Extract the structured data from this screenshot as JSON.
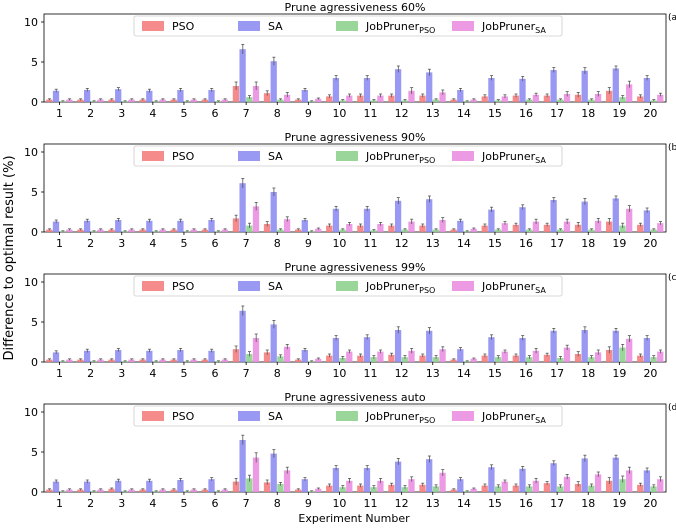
{
  "figure": {
    "ylabel": "Difference to optimal result (%)",
    "xlabel": "Experiment Number"
  },
  "colors": {
    "PSO": "#f4807e",
    "SA": "#8e8ef3",
    "JobPruner_PSO": "#8fd18f",
    "JobPruner_SA": "#ea8fe0",
    "error_bar": "#555555"
  },
  "legend": {
    "placement": "top-center",
    "entries": [
      {
        "key": "PSO",
        "label": "PSO",
        "sub": ""
      },
      {
        "key": "SA",
        "label": "SA",
        "sub": ""
      },
      {
        "key": "JobPruner_PSO",
        "label": "JobPruner",
        "sub": "PSO"
      },
      {
        "key": "JobPruner_SA",
        "label": "JobPruner",
        "sub": "SA"
      }
    ]
  },
  "chart_data": [
    {
      "type": "bar",
      "panel": "(a)",
      "title": "Prune agressiveness 60%",
      "categories": [
        "1",
        "2",
        "3",
        "4",
        "5",
        "6",
        "7",
        "8",
        "9",
        "10",
        "11",
        "12",
        "13",
        "14",
        "15",
        "16",
        "17",
        "18",
        "19",
        "20"
      ],
      "yticks": [
        "0",
        "5",
        "10"
      ],
      "ylim": [
        0,
        11
      ],
      "grid": false,
      "series": [
        {
          "key": "PSO",
          "name": "PSO",
          "values": [
            0.3,
            0.3,
            0.3,
            0.3,
            0.3,
            0.3,
            2.0,
            1.1,
            0.3,
            0.7,
            0.8,
            0.8,
            0.8,
            0.3,
            0.7,
            0.8,
            0.8,
            0.9,
            1.4,
            0.7
          ],
          "errors": [
            0.1,
            0.1,
            0.1,
            0.1,
            0.1,
            0.1,
            0.5,
            0.3,
            0.1,
            0.2,
            0.2,
            0.2,
            0.2,
            0.1,
            0.2,
            0.2,
            0.2,
            0.3,
            0.4,
            0.2
          ]
        },
        {
          "key": "SA",
          "name": "SA",
          "values": [
            1.4,
            1.5,
            1.6,
            1.4,
            1.5,
            1.5,
            6.6,
            5.1,
            1.5,
            3.0,
            3.0,
            4.1,
            3.7,
            1.5,
            3.0,
            2.9,
            4.0,
            3.9,
            4.2,
            3.0
          ],
          "errors": [
            0.2,
            0.2,
            0.2,
            0.2,
            0.2,
            0.2,
            0.6,
            0.5,
            0.2,
            0.3,
            0.3,
            0.4,
            0.4,
            0.2,
            0.3,
            0.3,
            0.3,
            0.4,
            0.3,
            0.3
          ]
        },
        {
          "key": "JobPruner_PSO",
          "name": "JobPruner_PSO",
          "values": [
            0.1,
            0.1,
            0.1,
            0.1,
            0.1,
            0.1,
            0.6,
            0.3,
            0.1,
            0.2,
            0.2,
            0.2,
            0.3,
            0.1,
            0.2,
            0.3,
            0.3,
            0.3,
            0.6,
            0.2
          ],
          "errors": [
            0.05,
            0.05,
            0.05,
            0.05,
            0.05,
            0.05,
            0.2,
            0.1,
            0.05,
            0.1,
            0.1,
            0.1,
            0.1,
            0.05,
            0.1,
            0.1,
            0.1,
            0.1,
            0.2,
            0.1
          ]
        },
        {
          "key": "JobPruner_SA",
          "name": "JobPruner_SA",
          "values": [
            0.3,
            0.3,
            0.3,
            0.3,
            0.3,
            0.3,
            2.0,
            0.9,
            0.4,
            0.8,
            0.8,
            1.4,
            1.2,
            0.3,
            0.7,
            0.9,
            1.0,
            1.0,
            2.2,
            0.9
          ],
          "errors": [
            0.1,
            0.1,
            0.1,
            0.1,
            0.1,
            0.1,
            0.5,
            0.3,
            0.1,
            0.2,
            0.2,
            0.4,
            0.3,
            0.1,
            0.2,
            0.2,
            0.3,
            0.3,
            0.4,
            0.2
          ]
        }
      ]
    },
    {
      "type": "bar",
      "panel": "(b)",
      "title": "Prune agressiveness 90%",
      "categories": [
        "1",
        "2",
        "3",
        "4",
        "5",
        "6",
        "7",
        "8",
        "9",
        "10",
        "11",
        "12",
        "13",
        "14",
        "15",
        "16",
        "17",
        "18",
        "19",
        "20"
      ],
      "yticks": [
        "0",
        "5",
        "10"
      ],
      "ylim": [
        0,
        11
      ],
      "grid": false,
      "series": [
        {
          "key": "PSO",
          "name": "PSO",
          "values": [
            0.3,
            0.3,
            0.3,
            0.3,
            0.3,
            0.3,
            1.7,
            1.0,
            0.3,
            0.8,
            0.8,
            0.8,
            0.8,
            0.3,
            0.8,
            0.9,
            0.9,
            0.9,
            1.3,
            0.9
          ],
          "errors": [
            0.1,
            0.1,
            0.1,
            0.1,
            0.1,
            0.1,
            0.4,
            0.3,
            0.1,
            0.2,
            0.2,
            0.2,
            0.2,
            0.1,
            0.2,
            0.2,
            0.2,
            0.3,
            0.4,
            0.2
          ]
        },
        {
          "key": "SA",
          "name": "SA",
          "values": [
            1.3,
            1.4,
            1.5,
            1.4,
            1.4,
            1.5,
            6.1,
            5.0,
            1.5,
            2.9,
            2.9,
            3.9,
            4.1,
            1.4,
            2.8,
            3.1,
            4.0,
            3.8,
            4.2,
            2.7
          ],
          "errors": [
            0.2,
            0.2,
            0.2,
            0.2,
            0.2,
            0.2,
            0.6,
            0.5,
            0.2,
            0.3,
            0.3,
            0.4,
            0.4,
            0.2,
            0.3,
            0.3,
            0.3,
            0.4,
            0.3,
            0.3
          ]
        },
        {
          "key": "JobPruner_PSO",
          "name": "JobPruner_PSO",
          "values": [
            0.1,
            0.1,
            0.1,
            0.1,
            0.1,
            0.1,
            0.8,
            0.3,
            0.1,
            0.3,
            0.2,
            0.3,
            0.3,
            0.1,
            0.3,
            0.3,
            0.3,
            0.3,
            0.8,
            0.3
          ],
          "errors": [
            0.05,
            0.05,
            0.05,
            0.05,
            0.05,
            0.05,
            0.3,
            0.1,
            0.05,
            0.1,
            0.1,
            0.1,
            0.1,
            0.05,
            0.1,
            0.1,
            0.1,
            0.1,
            0.3,
            0.1
          ]
        },
        {
          "key": "JobPruner_SA",
          "name": "JobPruner_SA",
          "values": [
            0.3,
            0.3,
            0.3,
            0.3,
            0.3,
            0.3,
            3.2,
            1.6,
            0.4,
            1.0,
            1.0,
            1.3,
            1.5,
            0.4,
            1.1,
            1.3,
            1.3,
            1.4,
            2.9,
            1.1
          ],
          "errors": [
            0.1,
            0.1,
            0.1,
            0.1,
            0.1,
            0.1,
            0.5,
            0.3,
            0.1,
            0.2,
            0.2,
            0.3,
            0.3,
            0.1,
            0.2,
            0.3,
            0.3,
            0.3,
            0.4,
            0.2
          ]
        }
      ]
    },
    {
      "type": "bar",
      "panel": "(c)",
      "title": "Prune agressiveness 99%",
      "categories": [
        "1",
        "2",
        "3",
        "4",
        "5",
        "6",
        "7",
        "8",
        "9",
        "10",
        "11",
        "12",
        "13",
        "14",
        "15",
        "16",
        "17",
        "18",
        "19",
        "20"
      ],
      "yticks": [
        "0",
        "5",
        "10"
      ],
      "ylim": [
        0,
        11
      ],
      "grid": false,
      "series": [
        {
          "key": "PSO",
          "name": "PSO",
          "values": [
            0.3,
            0.3,
            0.3,
            0.3,
            0.3,
            0.3,
            1.6,
            1.2,
            0.3,
            0.8,
            0.8,
            0.9,
            0.8,
            0.3,
            0.8,
            0.8,
            0.9,
            1.0,
            1.5,
            0.8
          ],
          "errors": [
            0.1,
            0.1,
            0.1,
            0.1,
            0.1,
            0.1,
            0.4,
            0.3,
            0.1,
            0.2,
            0.2,
            0.2,
            0.2,
            0.1,
            0.2,
            0.2,
            0.2,
            0.3,
            0.4,
            0.2
          ]
        },
        {
          "key": "SA",
          "name": "SA",
          "values": [
            1.2,
            1.4,
            1.5,
            1.4,
            1.5,
            1.4,
            6.4,
            4.7,
            1.5,
            3.0,
            3.1,
            4.0,
            3.9,
            1.6,
            3.1,
            3.0,
            3.9,
            4.0,
            3.9,
            3.0
          ],
          "errors": [
            0.2,
            0.2,
            0.2,
            0.2,
            0.2,
            0.2,
            0.6,
            0.5,
            0.2,
            0.3,
            0.3,
            0.4,
            0.4,
            0.2,
            0.3,
            0.3,
            0.3,
            0.4,
            0.3,
            0.3
          ]
        },
        {
          "key": "JobPruner_PSO",
          "name": "JobPruner_PSO",
          "values": [
            0.1,
            0.1,
            0.1,
            0.1,
            0.1,
            0.1,
            1.0,
            0.7,
            0.1,
            0.5,
            0.6,
            0.6,
            0.6,
            0.1,
            0.6,
            0.6,
            0.5,
            0.6,
            1.8,
            0.6
          ],
          "errors": [
            0.05,
            0.05,
            0.05,
            0.05,
            0.05,
            0.05,
            0.3,
            0.2,
            0.05,
            0.2,
            0.2,
            0.2,
            0.2,
            0.05,
            0.2,
            0.2,
            0.2,
            0.2,
            0.4,
            0.2
          ]
        },
        {
          "key": "JobPruner_SA",
          "name": "JobPruner_SA",
          "values": [
            0.3,
            0.3,
            0.3,
            0.3,
            0.3,
            0.3,
            3.0,
            1.9,
            0.4,
            1.3,
            1.3,
            1.4,
            1.6,
            0.4,
            1.3,
            1.4,
            1.8,
            1.2,
            2.9,
            1.3
          ],
          "errors": [
            0.1,
            0.1,
            0.1,
            0.1,
            0.1,
            0.1,
            0.5,
            0.3,
            0.1,
            0.2,
            0.2,
            0.3,
            0.3,
            0.1,
            0.2,
            0.3,
            0.3,
            0.3,
            0.4,
            0.2
          ]
        }
      ]
    },
    {
      "type": "bar",
      "panel": "(d)",
      "title": "Prune agressiveness auto",
      "categories": [
        "1",
        "2",
        "3",
        "4",
        "5",
        "6",
        "7",
        "8",
        "9",
        "10",
        "11",
        "12",
        "13",
        "14",
        "15",
        "16",
        "17",
        "18",
        "19",
        "20"
      ],
      "yticks": [
        "0",
        "5",
        "10"
      ],
      "ylim": [
        0,
        11
      ],
      "grid": false,
      "series": [
        {
          "key": "PSO",
          "name": "PSO",
          "values": [
            0.3,
            0.3,
            0.4,
            0.3,
            0.3,
            0.3,
            1.3,
            1.2,
            0.3,
            0.8,
            0.8,
            0.9,
            0.9,
            0.3,
            0.8,
            0.8,
            1.1,
            1.0,
            1.4,
            0.9
          ],
          "errors": [
            0.1,
            0.1,
            0.1,
            0.1,
            0.1,
            0.1,
            0.4,
            0.3,
            0.1,
            0.2,
            0.2,
            0.2,
            0.2,
            0.1,
            0.2,
            0.2,
            0.2,
            0.3,
            0.4,
            0.2
          ]
        },
        {
          "key": "SA",
          "name": "SA",
          "values": [
            1.3,
            1.3,
            1.4,
            1.4,
            1.5,
            1.6,
            6.5,
            4.8,
            1.6,
            3.0,
            3.0,
            3.8,
            4.1,
            1.6,
            3.1,
            2.9,
            3.6,
            4.2,
            4.3,
            2.7
          ],
          "errors": [
            0.2,
            0.2,
            0.2,
            0.2,
            0.2,
            0.2,
            0.6,
            0.5,
            0.2,
            0.3,
            0.3,
            0.4,
            0.4,
            0.2,
            0.3,
            0.3,
            0.3,
            0.4,
            0.3,
            0.3
          ]
        },
        {
          "key": "JobPruner_PSO",
          "name": "JobPruner_PSO",
          "values": [
            0.1,
            0.1,
            0.1,
            0.1,
            0.1,
            0.1,
            1.7,
            1.0,
            0.1,
            0.6,
            0.6,
            0.6,
            0.7,
            0.1,
            0.7,
            0.7,
            0.7,
            0.8,
            1.6,
            0.7
          ],
          "errors": [
            0.05,
            0.05,
            0.05,
            0.05,
            0.05,
            0.05,
            0.4,
            0.2,
            0.05,
            0.2,
            0.2,
            0.2,
            0.2,
            0.05,
            0.2,
            0.2,
            0.2,
            0.2,
            0.4,
            0.2
          ]
        },
        {
          "key": "JobPruner_SA",
          "name": "JobPruner_SA",
          "values": [
            0.3,
            0.3,
            0.3,
            0.3,
            0.3,
            0.3,
            4.3,
            2.7,
            0.4,
            1.4,
            1.4,
            1.6,
            2.4,
            0.4,
            1.3,
            1.4,
            1.9,
            2.2,
            2.7,
            1.6
          ],
          "errors": [
            0.1,
            0.1,
            0.1,
            0.1,
            0.1,
            0.1,
            0.6,
            0.4,
            0.1,
            0.3,
            0.3,
            0.3,
            0.4,
            0.1,
            0.2,
            0.3,
            0.3,
            0.3,
            0.4,
            0.3
          ]
        }
      ]
    }
  ]
}
